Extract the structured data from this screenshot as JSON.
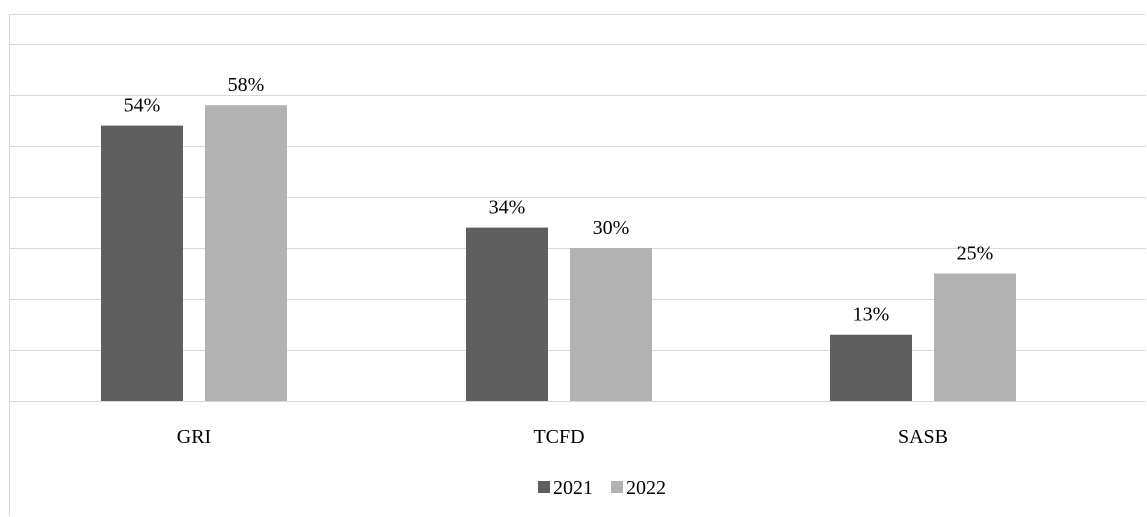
{
  "chart_data": {
    "type": "bar",
    "categories": [
      "GRI",
      "TCFD",
      "SASB"
    ],
    "series": [
      {
        "name": "2021",
        "values": [
          54,
          34,
          13
        ],
        "labels": [
          "54%",
          "34%",
          "13%"
        ],
        "color": "#5f5f5f"
      },
      {
        "name": "2022",
        "values": [
          58,
          30,
          25
        ],
        "labels": [
          "58%",
          "30%",
          "25%"
        ],
        "color": "#b2b2b2"
      }
    ],
    "ylim": [
      0,
      70
    ],
    "grid": true,
    "legend": "bottom",
    "title": "",
    "xlabel": "",
    "ylabel": ""
  }
}
